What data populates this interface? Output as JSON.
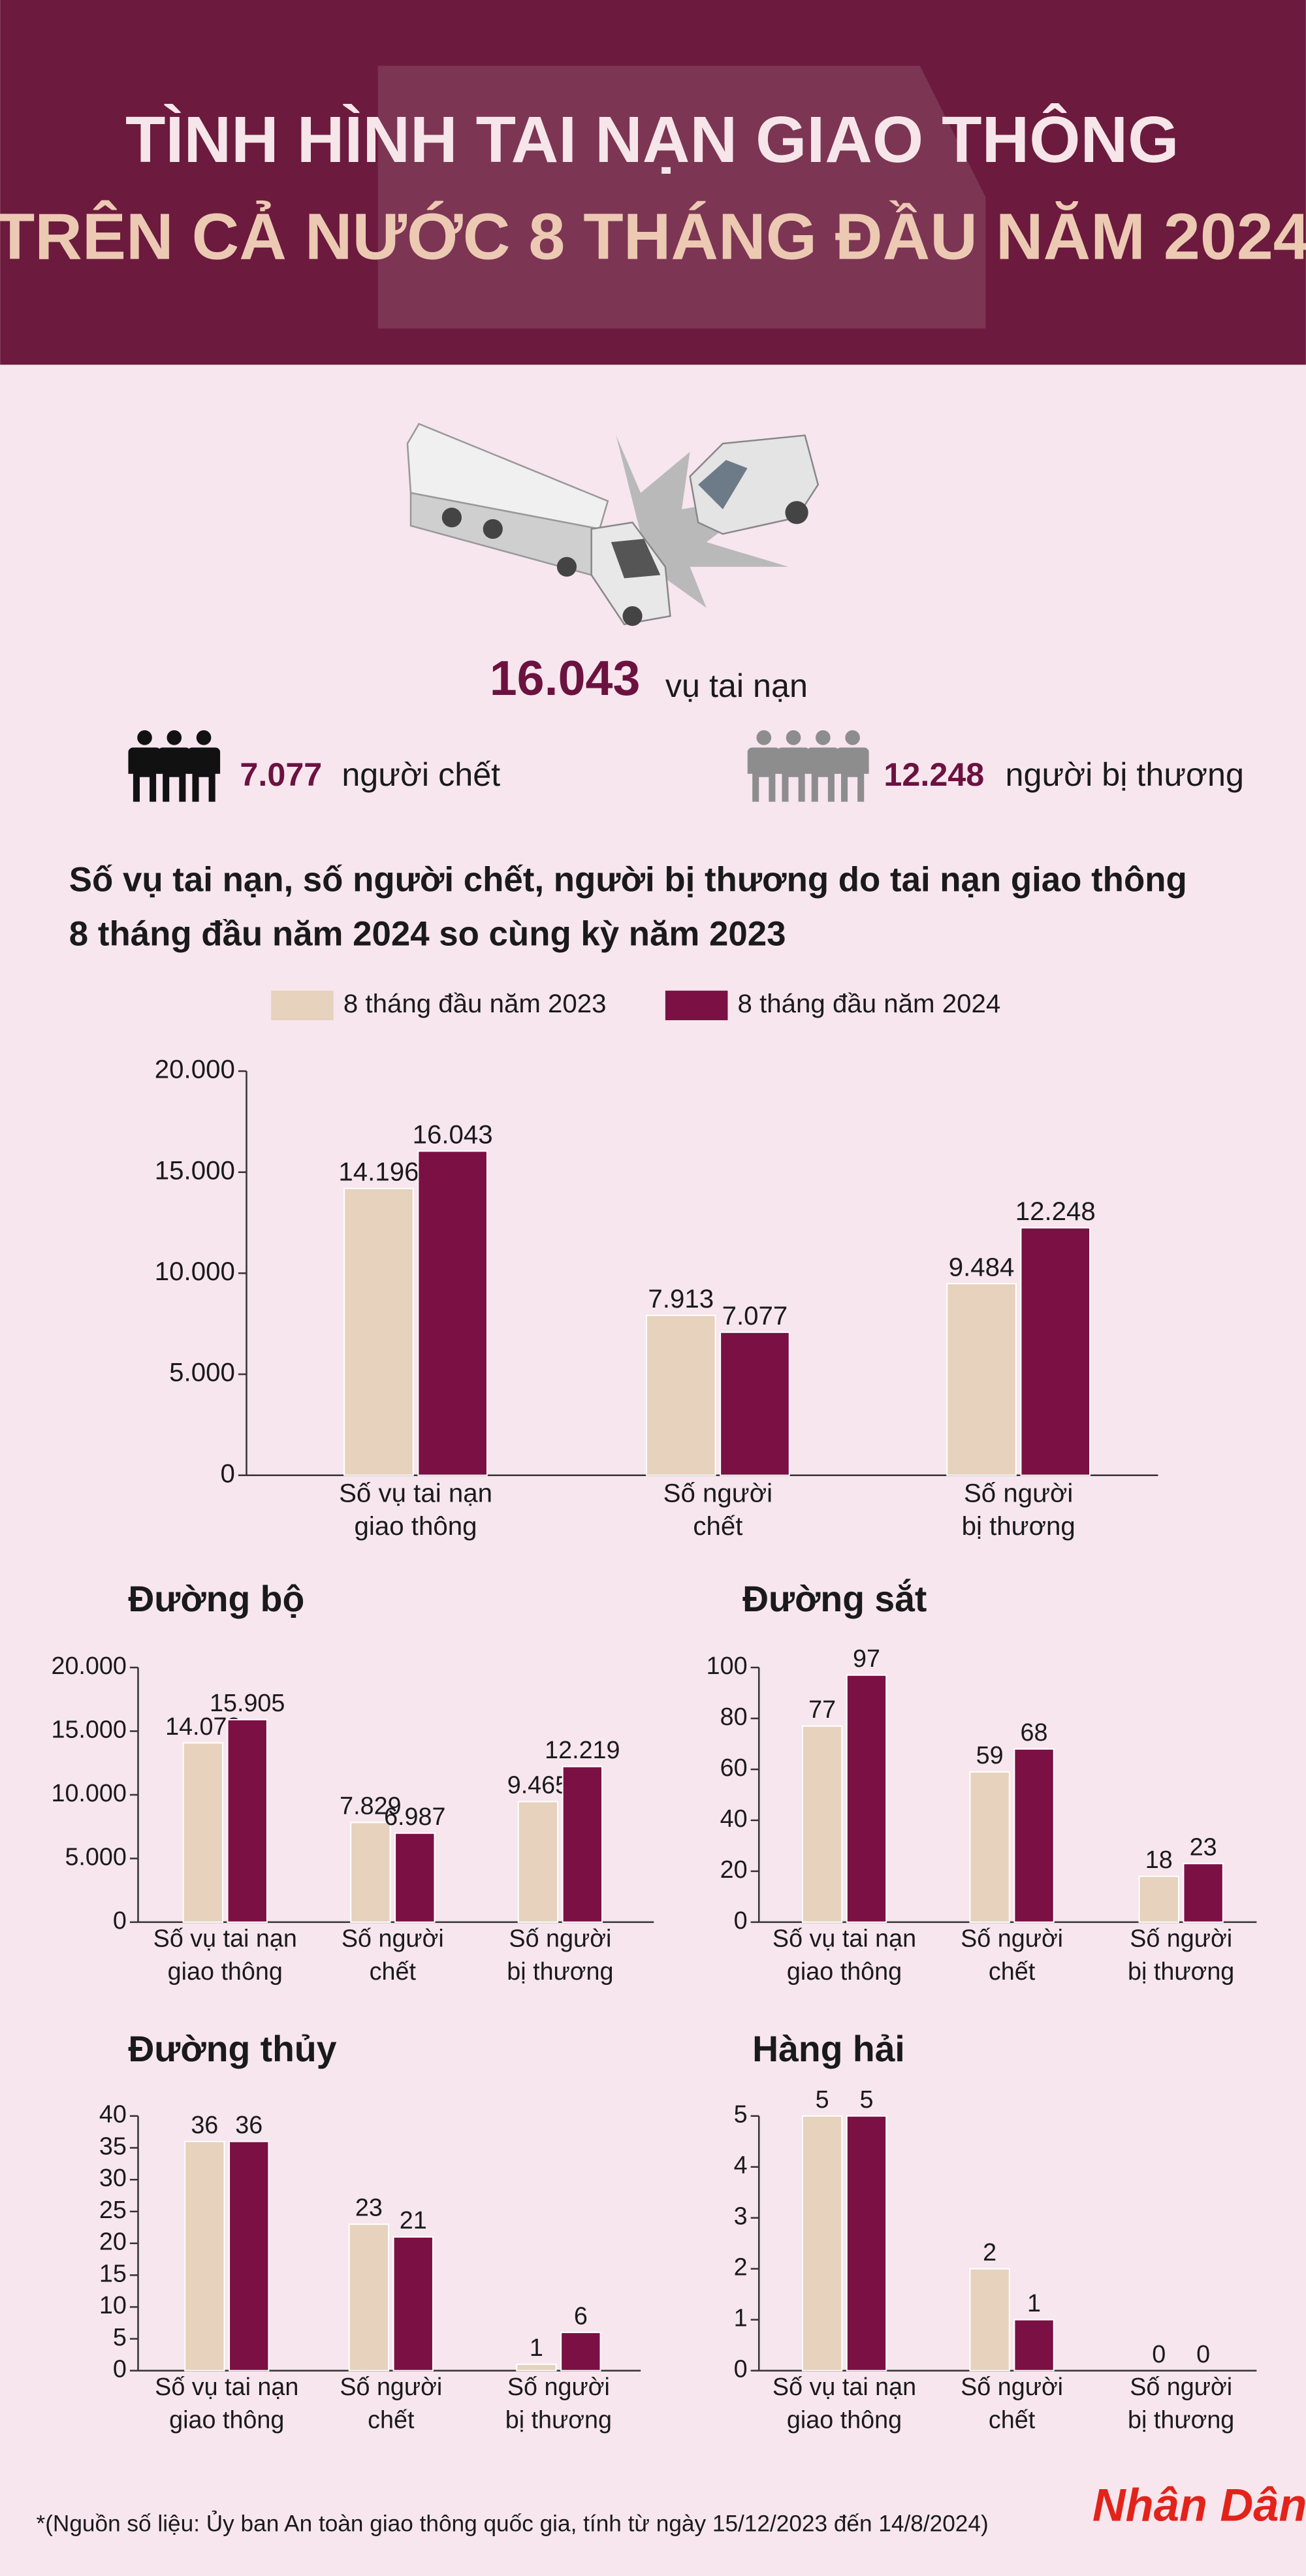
{
  "header": {
    "title_line1": "TÌNH HÌNH TAI NẠN GIAO THÔNG",
    "title_line2": "TRÊN CẢ NƯỚC 8 THÁNG ĐẦU NĂM 2024"
  },
  "stats": {
    "accidents": {
      "number": "16.043",
      "label": "vụ tai nạn"
    },
    "deaths": {
      "number": "7.077",
      "label": "người chết"
    },
    "injured": {
      "number": "12.248",
      "label": "người bị thương"
    }
  },
  "chart_data": [
    {
      "type": "bar",
      "title": [
        "Số vụ tai nạn, số người chết, người bị thương do tai nạn giao thông",
        "8 tháng đầu năm 2024 so cùng kỳ năm 2023"
      ],
      "categories": [
        [
          "Số vụ tai nạn",
          "giao thông"
        ],
        [
          "Số người",
          "chết"
        ],
        [
          "Số người",
          "bị thương"
        ]
      ],
      "series": [
        {
          "name": "8 tháng đầu năm 2023",
          "color": "#e6d2bd",
          "values": [
            14196,
            7913,
            9484
          ],
          "value_labels": [
            "14.196",
            "7.913",
            "9.484"
          ]
        },
        {
          "name": "8 tháng đầu năm 2024",
          "color": "#7a1043",
          "values": [
            16043,
            7077,
            12248
          ],
          "value_labels": [
            "16.043",
            "7.077",
            "12.248"
          ]
        }
      ],
      "ylim": [
        0,
        20000
      ],
      "yticks": [
        0,
        {
          "value": 5000,
          "label": "5.000"
        },
        {
          "value": 10000,
          "label": "10.000"
        },
        {
          "value": 15000,
          "label": "15.000"
        },
        {
          "value": 20000,
          "label": "20.000"
        }
      ]
    },
    {
      "type": "bar",
      "title": [
        "Đường bộ"
      ],
      "categories": [
        [
          "Số vụ tai nạn",
          "giao thông"
        ],
        [
          "Số người",
          "chết"
        ],
        [
          "Số người",
          "bị thương"
        ]
      ],
      "series": [
        {
          "color": "#e6d2bd",
          "values": [
            14078,
            7829,
            9465
          ],
          "value_labels": [
            "14.078",
            "7.829",
            "9.465"
          ]
        },
        {
          "color": "#7a1043",
          "values": [
            15905,
            6987,
            12219
          ],
          "value_labels": [
            "15.905",
            "6.987",
            "12.219"
          ]
        }
      ],
      "ylim": [
        0,
        20000
      ],
      "yticks": [
        0,
        {
          "value": 5000,
          "label": "5.000"
        },
        {
          "value": 10000,
          "label": "10.000"
        },
        {
          "value": 15000,
          "label": "15.000"
        },
        {
          "value": 20000,
          "label": "20.000"
        }
      ]
    },
    {
      "type": "bar",
      "title": [
        "Đường sắt"
      ],
      "categories": [
        [
          "Số vụ tai nạn",
          "giao thông"
        ],
        [
          "Số người",
          "chết"
        ],
        [
          "Số người",
          "bị thương"
        ]
      ],
      "series": [
        {
          "color": "#e6d2bd",
          "values": [
            77,
            59,
            18
          ]
        },
        {
          "color": "#7a1043",
          "values": [
            97,
            68,
            23
          ]
        }
      ],
      "ylim": [
        0,
        100
      ],
      "yticks": [
        0,
        20,
        40,
        60,
        80,
        100
      ]
    },
    {
      "type": "bar",
      "title": [
        "Đường thủy"
      ],
      "categories": [
        [
          "Số vụ tai nạn",
          "giao thông"
        ],
        [
          "Số người",
          "chết"
        ],
        [
          "Số người",
          "bị thương"
        ]
      ],
      "series": [
        {
          "color": "#e6d2bd",
          "values": [
            36,
            23,
            1
          ]
        },
        {
          "color": "#7a1043",
          "values": [
            36,
            21,
            6
          ]
        }
      ],
      "ylim": [
        0,
        40
      ],
      "yticks": [
        0,
        5,
        10,
        15,
        20,
        25,
        30,
        35,
        40
      ]
    },
    {
      "type": "bar",
      "title": [
        "Hàng hải"
      ],
      "categories": [
        [
          "Số vụ tai nạn",
          "giao thông"
        ],
        [
          "Số người",
          "chết"
        ],
        [
          "Số người",
          "bị thương"
        ]
      ],
      "series": [
        {
          "color": "#e6d2bd",
          "values": [
            5,
            2,
            0
          ]
        },
        {
          "color": "#7a1043",
          "values": [
            5,
            1,
            0
          ]
        }
      ],
      "ylim": [
        0,
        5
      ],
      "yticks": [
        0,
        1,
        2,
        3,
        4,
        5
      ]
    }
  ],
  "footnote": "*(Nguồn số liệu: Ủy ban An toàn giao thông quốc gia, tính từ ngày 15/12/2023 đến 14/8/2024)",
  "logo": "Nhân Dân"
}
